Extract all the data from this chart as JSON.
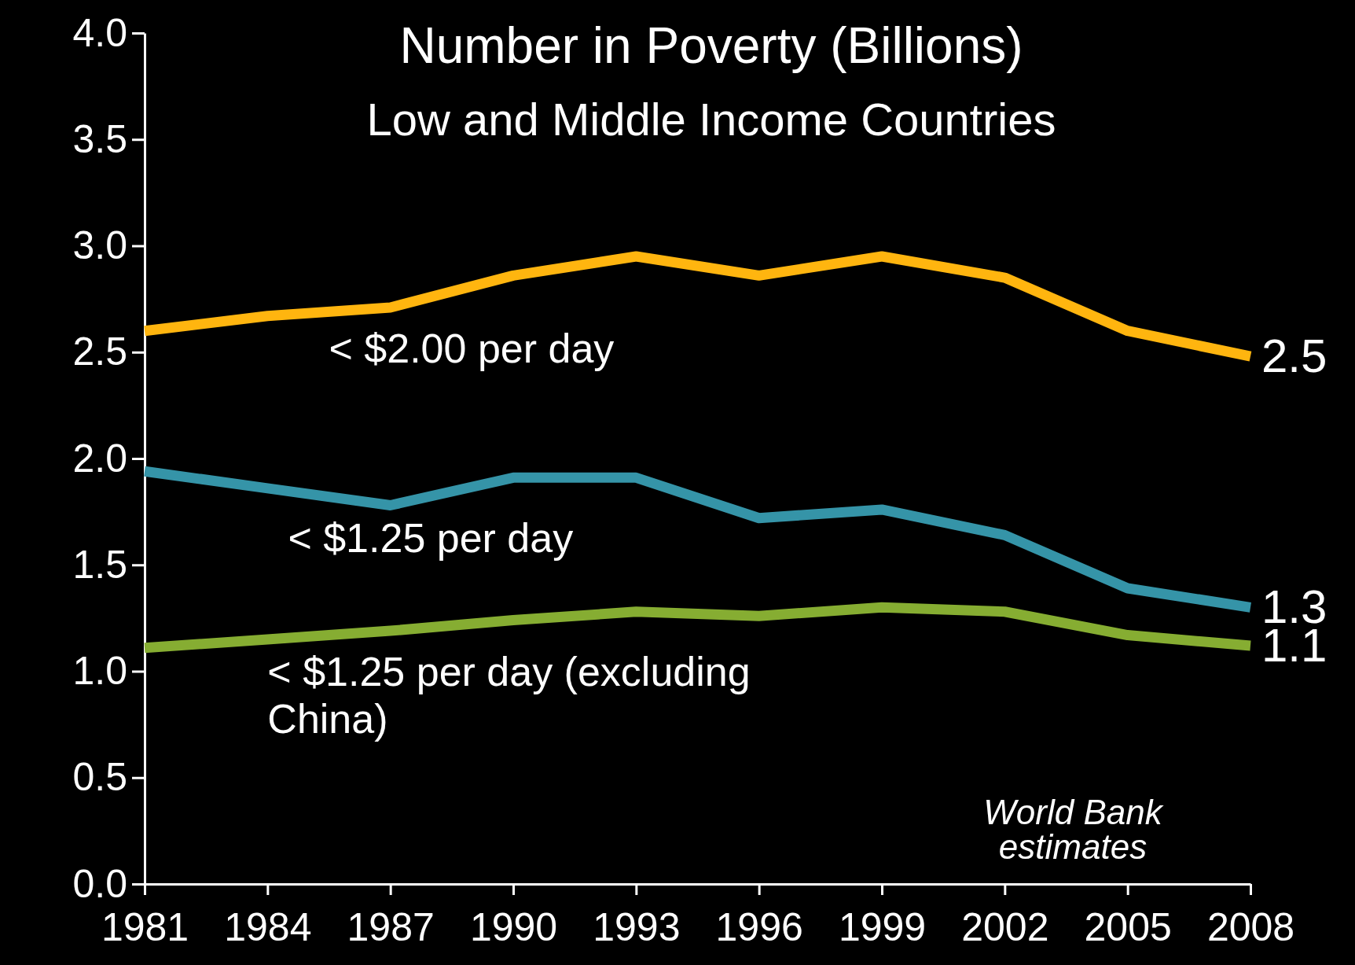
{
  "chart_data": {
    "type": "line",
    "title": "Number in Poverty (Billions)",
    "subtitle": "Low and Middle Income Countries",
    "x": [
      1981,
      1984,
      1987,
      1990,
      1993,
      1996,
      1999,
      2002,
      2005,
      2008
    ],
    "xlim": [
      1981,
      2008
    ],
    "xticks": [
      1981,
      1984,
      1987,
      1990,
      1993,
      1996,
      1999,
      2002,
      2005,
      2008
    ],
    "ylim": [
      0,
      4
    ],
    "yticks": [
      {
        "value": 0,
        "label": "0.0"
      },
      {
        "value": 0.5,
        "label": "0.5"
      },
      {
        "value": 1,
        "label": "1.0"
      },
      {
        "value": 1.5,
        "label": "1.5"
      },
      {
        "value": 2,
        "label": "2.0"
      },
      {
        "value": 2.5,
        "label": "2.5"
      },
      {
        "value": 3,
        "label": "3.0"
      },
      {
        "value": 3.5,
        "label": "3.5"
      },
      {
        "value": 4,
        "label": "4.0"
      }
    ],
    "grid": false,
    "marker": "none",
    "line_style": "solid",
    "series": [
      {
        "name": "< $2.00 per day",
        "color": "#ffb50f",
        "values": [
          2.6,
          2.67,
          2.71,
          2.86,
          2.95,
          2.86,
          2.95,
          2.85,
          2.6,
          2.48
        ],
        "value_labels": [
          null,
          null,
          null,
          null,
          null,
          null,
          null,
          null,
          null,
          "2.5"
        ]
      },
      {
        "name": "< $1.25 per day",
        "color": "#3594a8",
        "values": [
          1.94,
          1.86,
          1.78,
          1.91,
          1.91,
          1.72,
          1.76,
          1.64,
          1.39,
          1.3
        ],
        "value_labels": [
          null,
          null,
          null,
          null,
          null,
          null,
          null,
          null,
          null,
          "1.3"
        ]
      },
      {
        "name": "< $1.25 per day (excluding China)",
        "color": "#86ad32",
        "values": [
          1.11,
          1.15,
          1.19,
          1.24,
          1.28,
          1.26,
          1.3,
          1.28,
          1.17,
          1.12
        ],
        "value_labels": [
          null,
          null,
          null,
          null,
          null,
          null,
          null,
          null,
          null,
          "1.1"
        ]
      }
    ],
    "annotations": [
      "World  Bank estimates"
    ]
  }
}
